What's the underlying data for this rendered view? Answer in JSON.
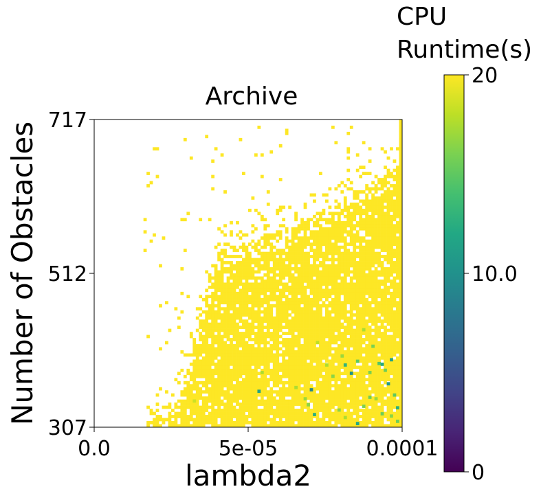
{
  "chart_data": {
    "type": "heatmap",
    "title": "Archive",
    "xlabel": "lambda2",
    "ylabel": "Number of Obstacles",
    "xlim": [
      0.0,
      0.0001
    ],
    "ylim": [
      307,
      717
    ],
    "xticks": [
      {
        "value": 0.0,
        "label": "0.0"
      },
      {
        "value": 5e-05,
        "label": "5e-05"
      },
      {
        "value": 0.0001,
        "label": "0.0001"
      }
    ],
    "yticks": [
      {
        "value": 307,
        "label": "307"
      },
      {
        "value": 512,
        "label": "512"
      },
      {
        "value": 717,
        "label": "717"
      }
    ],
    "grid": false,
    "colorbar": {
      "label_lines": [
        "CPU",
        "Runtime(s)"
      ],
      "colormap": "viridis",
      "range": [
        0,
        20
      ],
      "ticks": [
        {
          "value": 0,
          "label": "0"
        },
        {
          "value": 10,
          "label": "10.0"
        },
        {
          "value": 20,
          "label": "20"
        }
      ]
    },
    "summary": {
      "cells_x": 100,
      "cells_y": 100,
      "dominant_value": 20,
      "note_lower_values_region": "lambda2 0.00007-0.0001, obstacles 307-420"
    },
    "cells": [
      {
        "x": 9.25e-05,
        "y": 392,
        "v": 14.5
      },
      {
        "x": 9.35e-05,
        "y": 391,
        "v": 12.0
      },
      {
        "x": 9.65e-05,
        "y": 397,
        "v": 11.5
      },
      {
        "x": 8.15e-05,
        "y": 390,
        "v": 13.0
      },
      {
        "x": 7.05e-05,
        "y": 357,
        "v": 9.0
      },
      {
        "x": 5.35e-05,
        "y": 355,
        "v": 11.5
      },
      {
        "x": 7.15e-05,
        "y": 324,
        "v": 12.5
      },
      {
        "x": 8.35e-05,
        "y": 379,
        "v": 10.0
      },
      {
        "x": 9.55e-05,
        "y": 365,
        "v": 10.5
      },
      {
        "x": 8.55e-05,
        "y": 312,
        "v": 12.0
      },
      {
        "x": 9.85e-05,
        "y": 333,
        "v": 12.5
      },
      {
        "x": 9.85e-05,
        "y": 315,
        "v": 15.5
      },
      {
        "x": 9.35e-05,
        "y": 325,
        "v": 15.5
      },
      {
        "x": 9.75e-05,
        "y": 350,
        "v": 15.0
      },
      {
        "x": 8.95e-05,
        "y": 380,
        "v": 16.0
      },
      {
        "x": 9.45e-05,
        "y": 383,
        "v": 15.5
      },
      {
        "x": 9.05e-05,
        "y": 415,
        "v": 16.0
      },
      {
        "x": 8.75e-05,
        "y": 437,
        "v": 17.5
      },
      {
        "x": 8.05e-05,
        "y": 402,
        "v": 17.0
      },
      {
        "x": 7.75e-05,
        "y": 375,
        "v": 16.5
      },
      {
        "x": 7.55e-05,
        "y": 390,
        "v": 17.5
      },
      {
        "x": 7.25e-05,
        "y": 420,
        "v": 18.0
      },
      {
        "x": 6.85e-05,
        "y": 345,
        "v": 17.0
      },
      {
        "x": 6.95e-05,
        "y": 337,
        "v": 16.5
      },
      {
        "x": 7.95e-05,
        "y": 330,
        "v": 16.5
      },
      {
        "x": 8.15e-05,
        "y": 320,
        "v": 17.5
      },
      {
        "x": 8.75e-05,
        "y": 335,
        "v": 16.0
      },
      {
        "x": 9.15e-05,
        "y": 345,
        "v": 17.0
      },
      {
        "x": 9.65e-05,
        "y": 322,
        "v": 16.5
      },
      {
        "x": 6.55e-05,
        "y": 360,
        "v": 17.5
      },
      {
        "x": 8.55e-05,
        "y": 395,
        "v": 15.0
      },
      {
        "x": 8.95e-05,
        "y": 347,
        "v": 15.5
      },
      {
        "x": 5.45e-05,
        "y": 380,
        "v": 17.5
      },
      {
        "x": 3.25e-05,
        "y": 342,
        "v": 18.5
      }
    ]
  }
}
